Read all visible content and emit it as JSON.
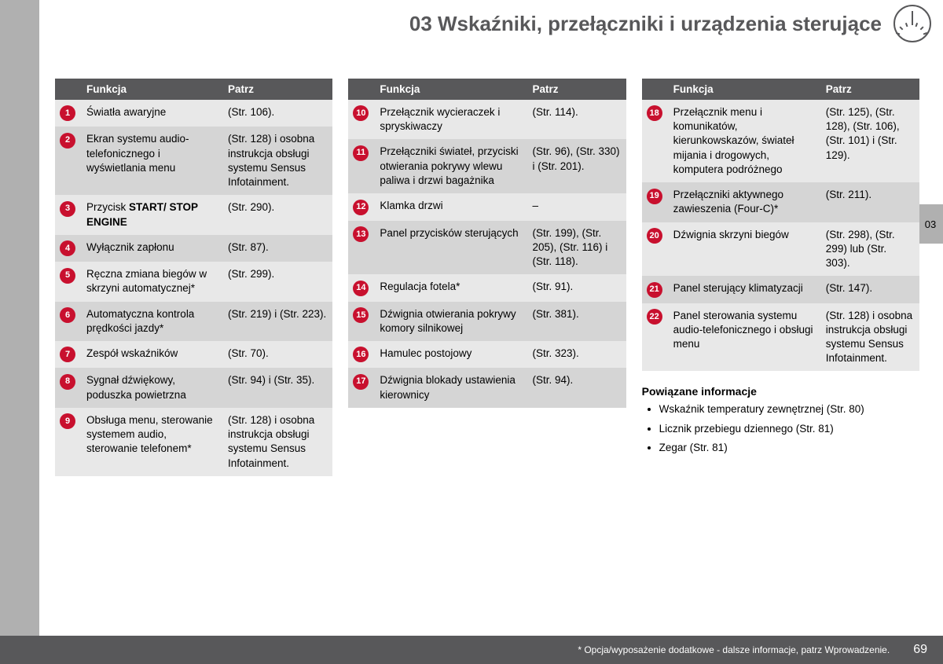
{
  "header": {
    "title": "03 Wskaźniki, przełączniki i urządzenia sterujące"
  },
  "sideTab": "03",
  "columns": {
    "t1": {
      "headers": {
        "blank": "",
        "funkcja": "Funkcja",
        "patrz": "Patrz"
      },
      "rows": [
        {
          "n": "1",
          "f": "Światła awaryjne",
          "p": "(Str. 106)."
        },
        {
          "n": "2",
          "f": "Ekran systemu audio-telefonicznego i wyświetlania menu",
          "p": "(Str. 128) i osobna instrukcja obsługi systemu Sensus Infotainment."
        },
        {
          "n": "3",
          "f_html": "Przycisk <b>START/ STOP ENGINE</b>",
          "p": "(Str. 290)."
        },
        {
          "n": "4",
          "f": "Wyłącznik zapłonu",
          "p": "(Str. 87)."
        },
        {
          "n": "5",
          "f": "Ręczna zmiana biegów w skrzyni automatycznej*",
          "p": "(Str. 299)."
        },
        {
          "n": "6",
          "f": "Automatyczna kontrola prędkości jazdy*",
          "p": "(Str. 219) i (Str. 223)."
        },
        {
          "n": "7",
          "f": "Zespół wskaźników",
          "p": "(Str. 70)."
        },
        {
          "n": "8",
          "f": "Sygnał dźwiękowy, poduszka powietrzna",
          "p": "(Str. 94) i (Str. 35)."
        },
        {
          "n": "9",
          "f": "Obsługa menu, sterowanie systemem audio, sterowanie telefonem*",
          "p": "(Str. 128) i osobna instrukcja obsługi systemu Sensus Infotainment."
        }
      ]
    },
    "t2": {
      "headers": {
        "blank": "",
        "funkcja": "Funkcja",
        "patrz": "Patrz"
      },
      "rows": [
        {
          "n": "10",
          "f": "Przełącznik wycieraczek i spryskiwaczy",
          "p": "(Str. 114)."
        },
        {
          "n": "11",
          "f": "Przełączniki świateł, przyciski otwierania pokrywy wlewu paliwa i drzwi bagażnika",
          "p": "(Str. 96), (Str. 330) i (Str. 201)."
        },
        {
          "n": "12",
          "f": "Klamka drzwi",
          "p": "–"
        },
        {
          "n": "13",
          "f": "Panel przycisków sterujących",
          "p": "(Str. 199), (Str. 205), (Str. 116) i (Str. 118)."
        },
        {
          "n": "14",
          "f": "Regulacja fotela*",
          "p": "(Str. 91)."
        },
        {
          "n": "15",
          "f": "Dźwignia otwierania pokrywy komory silnikowej",
          "p": "(Str. 381)."
        },
        {
          "n": "16",
          "f": "Hamulec postojowy",
          "p": "(Str. 323)."
        },
        {
          "n": "17",
          "f": "Dźwignia blokady ustawienia kierownicy",
          "p": "(Str. 94)."
        }
      ]
    },
    "t3": {
      "headers": {
        "blank": "",
        "funkcja": "Funkcja",
        "patrz": "Patrz"
      },
      "rows": [
        {
          "n": "18",
          "f": "Przełącznik menu i komunikatów, kierunkowskazów, świateł mijania i drogowych, komputera podróżnego",
          "p": "(Str. 125), (Str. 128), (Str. 106), (Str. 101) i (Str. 129)."
        },
        {
          "n": "19",
          "f": "Przełączniki aktywnego zawieszenia (Four-C)*",
          "p": "(Str. 211)."
        },
        {
          "n": "20",
          "f": "Dźwignia skrzyni biegów",
          "p": "(Str. 298), (Str. 299) lub (Str. 303)."
        },
        {
          "n": "21",
          "f": "Panel sterujący klimatyzacji",
          "p": "(Str. 147)."
        },
        {
          "n": "22",
          "f": "Panel sterowania systemu audio-telefonicznego i obsługi menu",
          "p": "(Str. 128) i osobna instrukcja obsługi systemu Sensus Infotainment."
        }
      ]
    }
  },
  "related": {
    "title": "Powiązane informacje",
    "items": [
      "Wskaźnik temperatury zewnętrznej (Str. 80)",
      "Licznik przebiegu dziennego (Str. 81)",
      "Zegar (Str. 81)"
    ]
  },
  "footer": {
    "note": "* Opcja/wyposażenie dodatkowe - dalsze informacje, patrz Wprowadzenie.",
    "page": "69"
  }
}
